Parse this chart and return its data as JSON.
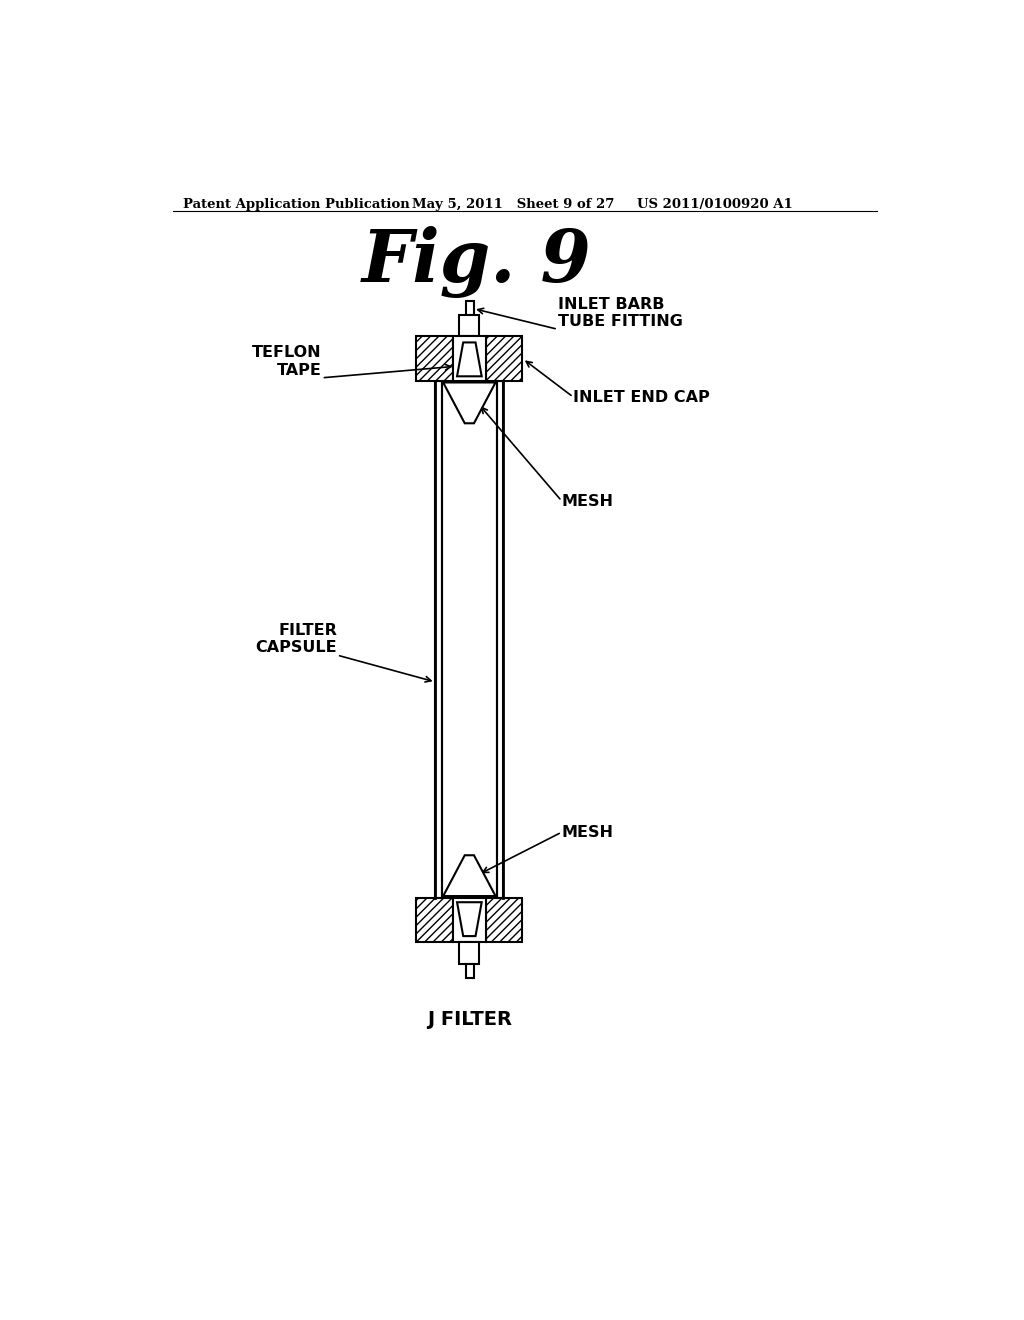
{
  "background_color": "#ffffff",
  "header_left": "Patent Application Publication",
  "header_middle": "May 5, 2011   Sheet 9 of 27",
  "header_right": "US 2011/0100920 A1",
  "fig_title": "Fig. 9",
  "label_inlet_barb": "INLET BARB\nTUBE FITTING",
  "label_teflon": "TEFLON\nTAPE",
  "label_inlet_end_cap": "INLET END CAP",
  "label_mesh_top": "MESH",
  "label_filter_capsule": "FILTER\nCAPSULE",
  "label_mesh_bottom": "MESH",
  "label_j_filter": "J FILTER",
  "line_color": "#000000",
  "lw": 1.5,
  "lw_thick": 2.0
}
